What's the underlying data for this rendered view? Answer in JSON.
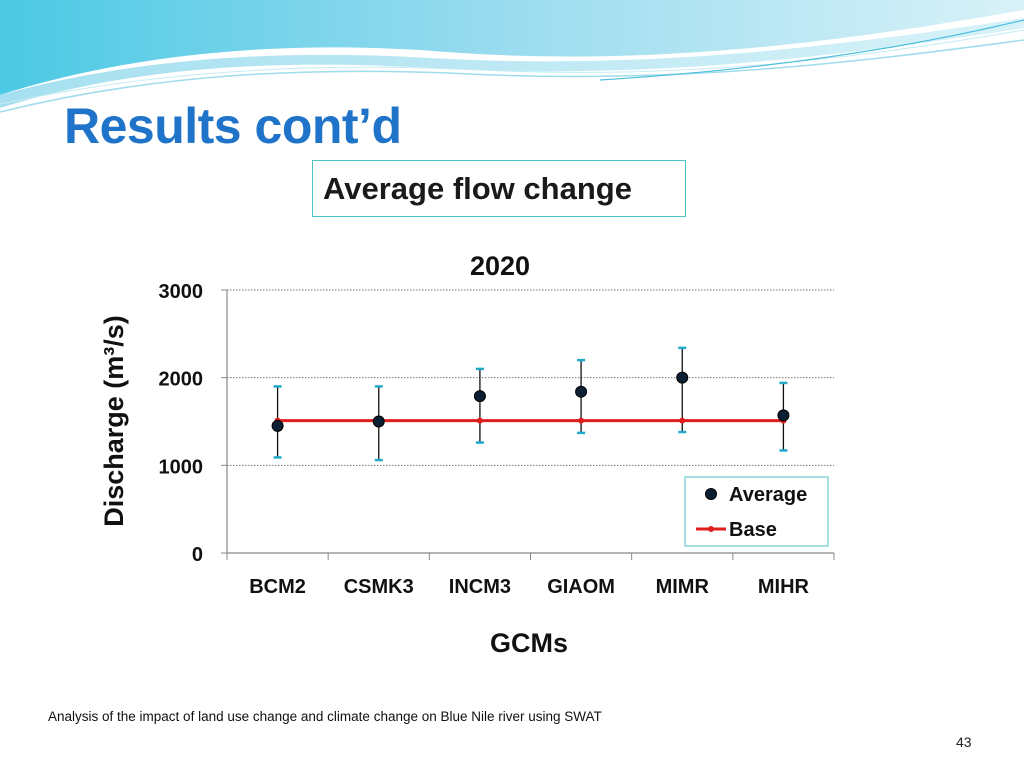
{
  "slide": {
    "title": "Results cont’d",
    "subtitle": "Average flow  change",
    "footer": "Analysis of the impact of land use change and climate change on Blue Nile river using SWAT",
    "page_number": "43"
  },
  "colors": {
    "title": "#1f73c8",
    "base_line": "#e01e1e",
    "average_marker": "#0b1f33",
    "error_cap": "#21a9c9",
    "box_border": "#4fc2c4"
  },
  "chart_data": {
    "type": "scatter",
    "title": "2020",
    "xlabel": "GCMs",
    "ylabel": "Discharge (m³/s)",
    "categories": [
      "BCM2",
      "CSMK3",
      "INCM3",
      "GIAOM",
      "MIMR",
      "MIHR"
    ],
    "ylim": [
      0,
      3000
    ],
    "yticks": [
      0,
      1000,
      2000,
      3000
    ],
    "grid": true,
    "legend": "bottom-right",
    "series": [
      {
        "name": "Average",
        "values": [
          1450,
          1500,
          1790,
          1840,
          2000,
          1570
        ],
        "error_high": [
          1900,
          1900,
          2100,
          2200,
          2340,
          1940
        ],
        "error_low": [
          1090,
          1060,
          1260,
          1370,
          1380,
          1170
        ]
      },
      {
        "name": "Base",
        "values": [
          1510,
          1510,
          1510,
          1510,
          1510,
          1510
        ]
      }
    ]
  }
}
